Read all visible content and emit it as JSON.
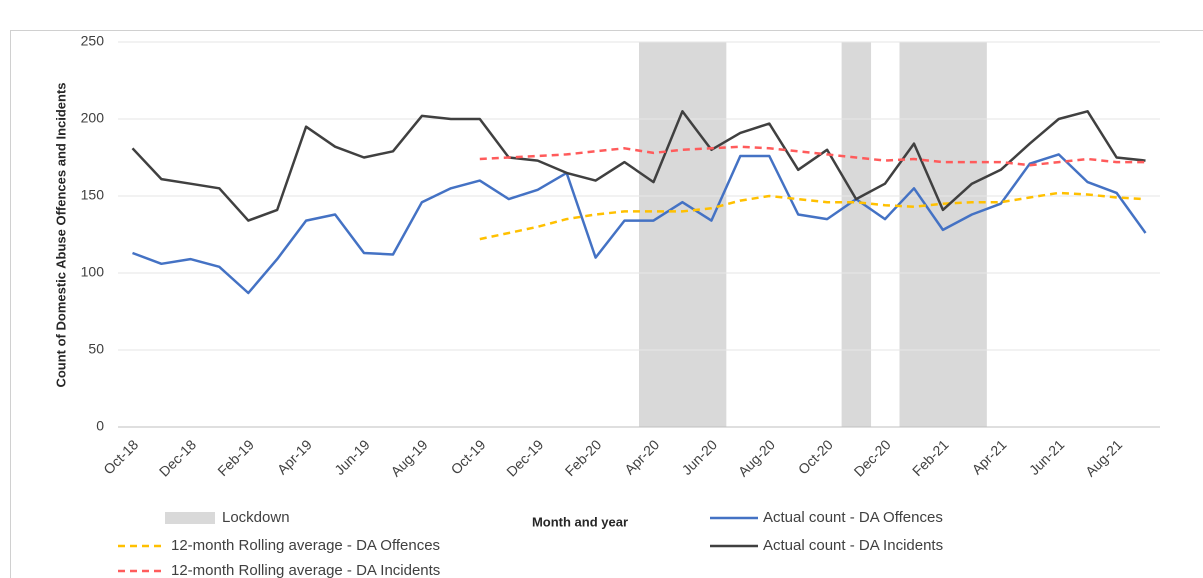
{
  "chart_data": {
    "type": "line",
    "x_label": "Month and year",
    "y_label": "Count of Domestic Abuse Offences and Incidents",
    "categories": [
      "Oct-18",
      null,
      "Dec-18",
      null,
      "Feb-19",
      null,
      "Apr-19",
      null,
      "Jun-19",
      null,
      "Aug-19",
      null,
      "Oct-19",
      null,
      "Dec-19",
      null,
      "Feb-20",
      null,
      "Apr-20",
      null,
      "Jun-20",
      null,
      "Aug-20",
      null,
      "Oct-20",
      null,
      "Dec-20",
      null,
      "Feb-21",
      null,
      "Apr-21",
      null,
      "Jun-21",
      null,
      "Aug-21",
      null
    ],
    "series": [
      {
        "name": "Lockdown",
        "type": "bar",
        "color": "#d9d9d9",
        "values": [
          null,
          null,
          null,
          null,
          null,
          null,
          null,
          null,
          null,
          null,
          null,
          null,
          null,
          null,
          null,
          null,
          null,
          null,
          250,
          250,
          250,
          null,
          null,
          null,
          null,
          250,
          null,
          250,
          250,
          250,
          null,
          null,
          null,
          null,
          null,
          null
        ]
      },
      {
        "name": "Actual count - DA Offences",
        "color": "#4472c4",
        "dash": false,
        "values": [
          113,
          106,
          109,
          104,
          87,
          109,
          134,
          138,
          113,
          112,
          146,
          155,
          160,
          148,
          154,
          165,
          110,
          134,
          134,
          146,
          134,
          176,
          176,
          138,
          135,
          148,
          135,
          155,
          128,
          138,
          145,
          171,
          177,
          159,
          152,
          126
        ]
      },
      {
        "name": "12-month Rolling average - DA Offences",
        "color": "#ffc000",
        "dash": true,
        "values": [
          null,
          null,
          null,
          null,
          null,
          null,
          null,
          null,
          null,
          null,
          null,
          null,
          122,
          126,
          130,
          135,
          138,
          140,
          140,
          140,
          142,
          147,
          150,
          148,
          146,
          146,
          144,
          143,
          145,
          146,
          146,
          149,
          152,
          151,
          149,
          148
        ]
      },
      {
        "name": "Actual count - DA Incidents",
        "color": "#404040",
        "dash": false,
        "values": [
          181,
          161,
          158,
          155,
          134,
          141,
          195,
          182,
          175,
          179,
          202,
          200,
          200,
          175,
          173,
          165,
          160,
          172,
          159,
          205,
          180,
          191,
          197,
          167,
          180,
          148,
          158,
          184,
          141,
          158,
          167,
          184,
          200,
          205,
          175,
          173
        ]
      },
      {
        "name": "12-month Rolling average - DA Incidents",
        "color": "#ff5b5b",
        "dash": true,
        "values": [
          null,
          null,
          null,
          null,
          null,
          null,
          null,
          null,
          null,
          null,
          null,
          null,
          174,
          175,
          176,
          177,
          179,
          181,
          178,
          180,
          181,
          182,
          181,
          179,
          177,
          175,
          173,
          174,
          172,
          172,
          172,
          170,
          172,
          174,
          172,
          172
        ]
      }
    ],
    "ylim": [
      0,
      250
    ],
    "yticks": [
      0,
      50,
      100,
      150,
      200,
      250
    ],
    "grid": true
  }
}
